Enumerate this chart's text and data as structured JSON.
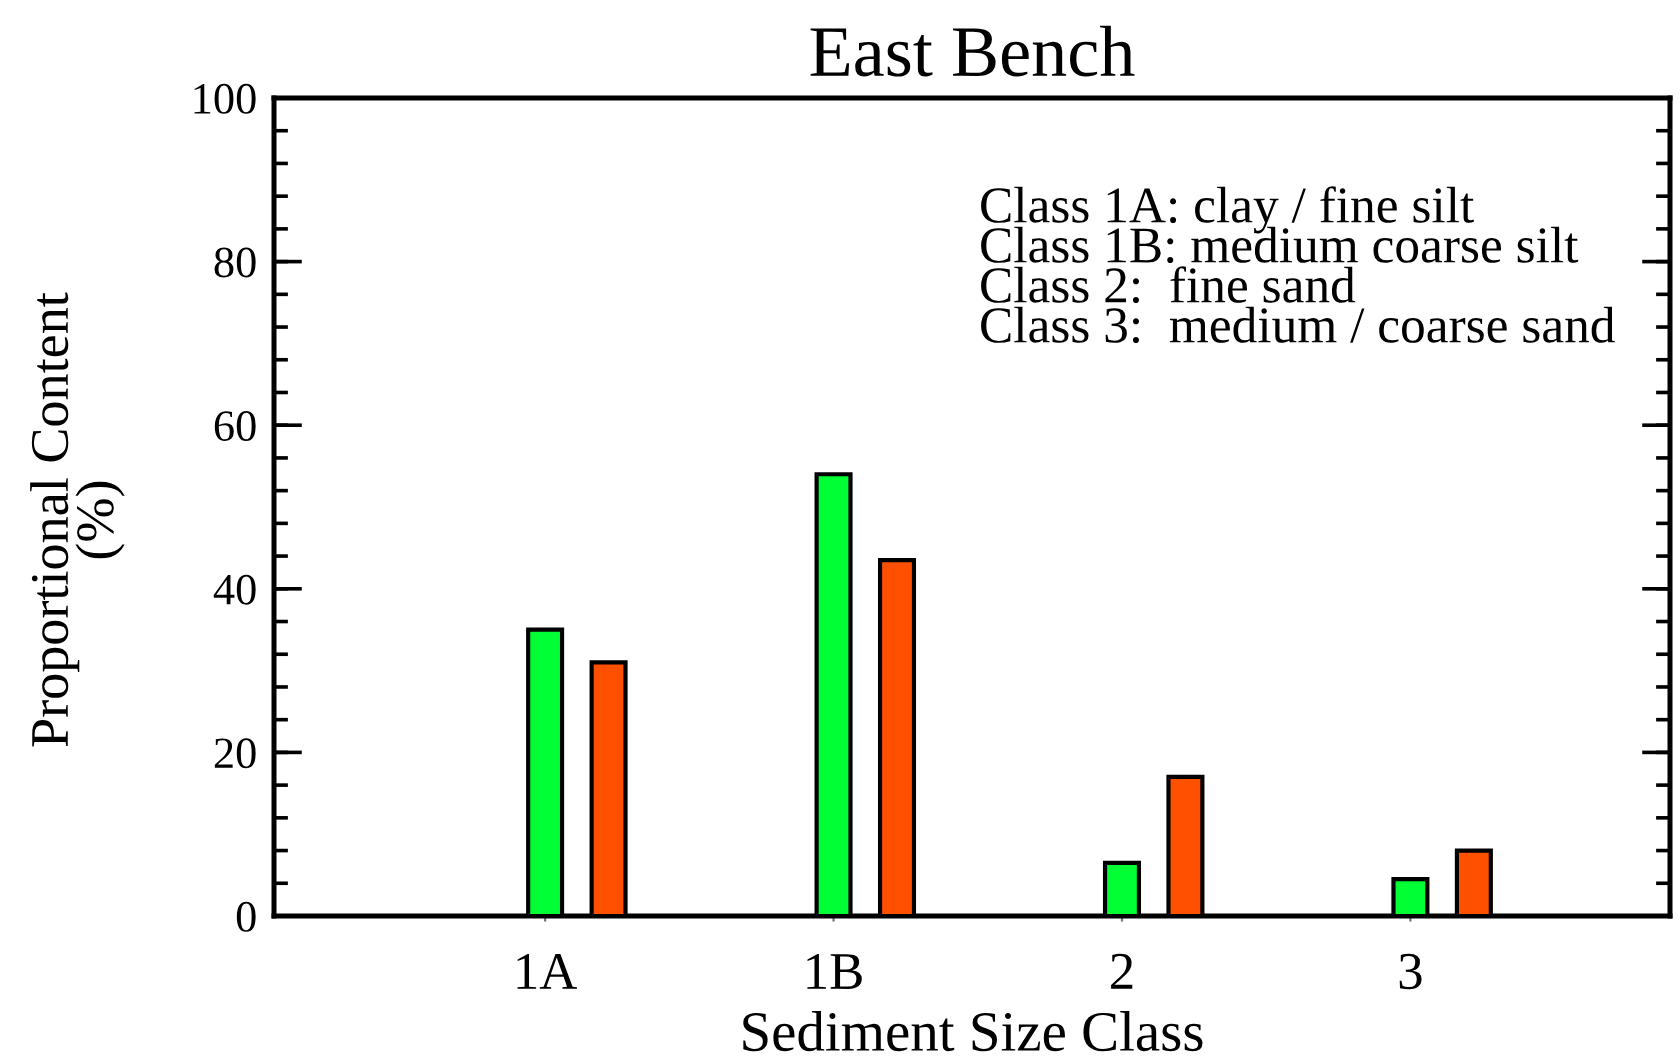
{
  "chart_data": {
    "type": "bar",
    "title": "East Bench",
    "xlabel": "Sediment Size Class",
    "ylabel": "Proportional Content\n(%)",
    "categories": [
      "1A",
      "1B",
      "2",
      "3"
    ],
    "series": [
      {
        "color": "#00ff33",
        "values": [
          35,
          54,
          6.5,
          4.5
        ]
      },
      {
        "color": "#ff5000",
        "values": [
          31,
          43.5,
          17,
          8
        ]
      }
    ],
    "ylim": [
      0,
      100
    ],
    "yticks": [
      0,
      {
        "value": 4,
        "label": null
      },
      {
        "value": 8,
        "label": null
      },
      {
        "value": 12,
        "label": null
      },
      {
        "value": 16,
        "label": null
      },
      20,
      {
        "value": 24,
        "label": null
      },
      {
        "value": 28,
        "label": null
      },
      {
        "value": 32,
        "label": null
      },
      {
        "value": 36,
        "label": null
      },
      40,
      {
        "value": 44,
        "label": null
      },
      {
        "value": 48,
        "label": null
      },
      {
        "value": 52,
        "label": null
      },
      {
        "value": 56,
        "label": null
      },
      60,
      {
        "value": 64,
        "label": null
      },
      {
        "value": 68,
        "label": null
      },
      {
        "value": 72,
        "label": null
      },
      {
        "value": 76,
        "label": null
      },
      80,
      {
        "value": 84,
        "label": null
      },
      {
        "value": 88,
        "label": null
      },
      {
        "value": 92,
        "label": null
      },
      {
        "value": 96,
        "label": null
      },
      100
    ],
    "annotations": [
      "Class 1A: clay / fine silt",
      "Class 1B: medium coarse silt",
      "Class 2:  fine sand",
      "Class 3:  medium / coarse sand"
    ],
    "grid": false
  }
}
